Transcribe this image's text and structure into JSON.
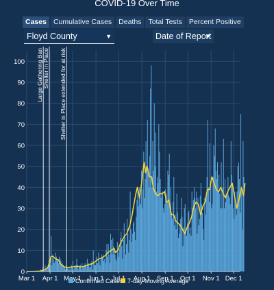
{
  "title": "COVID-19 Over Time",
  "tabs": [
    {
      "label": "Cases",
      "active": true
    },
    {
      "label": "Cumulative Cases",
      "active": false
    },
    {
      "label": "Deaths",
      "active": false
    },
    {
      "label": "Total Tests",
      "active": false
    },
    {
      "label": "Percent Positive",
      "active": false
    }
  ],
  "county_select": {
    "value": "Floyd County"
  },
  "date_select": {
    "value": "Date of Report"
  },
  "colors": {
    "background": "#153152",
    "bars": "#5ba8dd",
    "moving_average": "#f2d33b",
    "grid": "#2a4c70",
    "annotation_line": "#dfe6ee"
  },
  "chart_data": {
    "type": "bar",
    "x_axis": {
      "start": "Mar 1",
      "end": "Dec 9",
      "tick_labels": [
        "Mar 1",
        "Apr 1",
        "May 1",
        "Jun 1",
        "Jul 1",
        "Aug 1",
        "Sep 1",
        "Oct 1",
        "Nov 1",
        "Dec 1"
      ],
      "tick_days": [
        0,
        31,
        61,
        92,
        122,
        153,
        184,
        214,
        245,
        275
      ]
    },
    "y_axis": {
      "ylim": [
        0,
        105
      ],
      "ticks": [
        0,
        10,
        20,
        30,
        40,
        50,
        60,
        70,
        80,
        90,
        100
      ]
    },
    "grid": true,
    "legend": {
      "position": "bottom",
      "entries": [
        "Confirmed Cases",
        "7-day Moving Average"
      ]
    },
    "series": [
      {
        "name": "Confirmed Cases",
        "type": "bar"
      },
      {
        "name": "7-day Moving Average",
        "type": "line"
      }
    ],
    "daily_start": "Mar 1",
    "daily_cases": [
      0,
      0,
      0,
      0,
      0,
      0,
      0,
      0,
      0,
      0,
      0,
      0,
      0,
      0,
      0,
      0,
      0,
      0,
      1,
      0,
      0,
      2,
      1,
      0,
      3,
      1,
      1,
      2,
      3,
      5,
      4,
      6,
      17,
      3,
      8,
      6,
      4,
      5,
      9,
      7,
      6,
      5,
      4,
      7,
      6,
      5,
      3,
      4,
      3,
      2,
      2,
      1,
      3,
      2,
      2,
      1,
      1,
      2,
      1,
      3,
      2,
      5,
      1,
      2,
      2,
      3,
      6,
      3,
      1,
      3,
      2,
      3,
      1,
      4,
      2,
      2,
      3,
      4,
      3,
      2,
      6,
      3,
      4,
      2,
      2,
      4,
      5,
      1,
      10,
      3,
      4,
      3,
      7,
      4,
      4,
      9,
      5,
      3,
      6,
      8,
      7,
      8,
      5,
      6,
      4,
      10,
      13,
      7,
      13,
      8,
      4,
      18,
      15,
      8,
      16,
      12,
      10,
      8,
      6,
      5,
      14,
      9,
      7,
      11,
      16,
      19,
      12,
      6,
      15,
      23,
      17,
      8,
      13,
      25,
      18,
      9,
      15,
      38,
      20,
      14,
      18,
      23,
      24,
      19,
      15,
      26,
      34,
      40,
      31,
      40,
      35,
      32,
      48,
      30,
      39,
      57,
      35,
      44,
      62,
      50,
      72,
      49,
      40,
      55,
      87,
      98,
      40,
      62,
      48,
      80,
      50,
      66,
      38,
      45,
      42,
      70,
      57,
      44,
      35,
      37,
      38,
      30,
      28,
      32,
      39,
      37,
      33,
      48,
      46,
      56,
      30,
      40,
      28,
      25,
      33,
      45,
      22,
      27,
      20,
      37,
      28,
      16,
      23,
      18,
      25,
      35,
      26,
      12,
      21,
      30,
      32,
      20,
      17,
      23,
      28,
      29,
      18,
      21,
      17,
      38,
      30,
      34,
      40,
      35,
      30,
      38,
      18,
      35,
      22,
      25,
      36,
      42,
      32,
      28,
      20,
      15,
      35,
      27,
      36,
      45,
      72,
      40,
      33,
      61,
      42,
      30,
      32,
      45,
      60,
      55,
      68,
      48,
      44,
      52,
      38,
      46,
      37,
      30,
      52,
      30,
      40,
      63,
      30,
      44,
      33,
      36,
      38,
      45,
      36,
      35,
      32,
      62,
      46,
      40,
      30,
      25,
      38,
      32,
      27,
      38,
      50,
      52,
      44,
      28,
      75,
      40,
      20,
      62,
      45
    ],
    "moving_average": [
      [
        0,
        0
      ],
      [
        18,
        0.2
      ],
      [
        24,
        0.8
      ],
      [
        28,
        2
      ],
      [
        31,
        5
      ],
      [
        32,
        7
      ],
      [
        35,
        7.2
      ],
      [
        38,
        6
      ],
      [
        42,
        5.5
      ],
      [
        45,
        3.5
      ],
      [
        50,
        2.2
      ],
      [
        55,
        1.8
      ],
      [
        60,
        2.2
      ],
      [
        66,
        2.5
      ],
      [
        72,
        2.2
      ],
      [
        78,
        2.6
      ],
      [
        82,
        3.2
      ],
      [
        88,
        3.8
      ],
      [
        92,
        5
      ],
      [
        96,
        6
      ],
      [
        100,
        6.5
      ],
      [
        104,
        7.5
      ],
      [
        108,
        9
      ],
      [
        112,
        10
      ],
      [
        116,
        11
      ],
      [
        118,
        9
      ],
      [
        121,
        10
      ],
      [
        124,
        13
      ],
      [
        127,
        15
      ],
      [
        130,
        17
      ],
      [
        133,
        18
      ],
      [
        137,
        22
      ],
      [
        140,
        27
      ],
      [
        143,
        33
      ],
      [
        145,
        37
      ],
      [
        147,
        40
      ],
      [
        150,
        35
      ],
      [
        153,
        43
      ],
      [
        156,
        52
      ],
      [
        158,
        47
      ],
      [
        160,
        50
      ],
      [
        163,
        45
      ],
      [
        166,
        45
      ],
      [
        168,
        40
      ],
      [
        171,
        37
      ],
      [
        174,
        36
      ],
      [
        177,
        37
      ],
      [
        180,
        37
      ],
      [
        183,
        38
      ],
      [
        186,
        33
      ],
      [
        189,
        34
      ],
      [
        192,
        27
      ],
      [
        195,
        27
      ],
      [
        198,
        24
      ],
      [
        201,
        23
      ],
      [
        204,
        22
      ],
      [
        207,
        20
      ],
      [
        210,
        18
      ],
      [
        213,
        21
      ],
      [
        216,
        23
      ],
      [
        219,
        26
      ],
      [
        222,
        31
      ],
      [
        225,
        33
      ],
      [
        228,
        32
      ],
      [
        231,
        27
      ],
      [
        234,
        31
      ],
      [
        237,
        33
      ],
      [
        240,
        39
      ],
      [
        243,
        39
      ],
      [
        246,
        45
      ],
      [
        249,
        42
      ],
      [
        252,
        39
      ],
      [
        255,
        38
      ],
      [
        258,
        40
      ],
      [
        261,
        37
      ],
      [
        264,
        35
      ],
      [
        267,
        38
      ],
      [
        270,
        40
      ],
      [
        273,
        42
      ],
      [
        276,
        36
      ],
      [
        279,
        30
      ],
      [
        282,
        34
      ],
      [
        285,
        40
      ],
      [
        288,
        36
      ],
      [
        289,
        39
      ],
      [
        290,
        42
      ]
    ],
    "annotations": [
      {
        "label": "Large Gathering Ban",
        "day": 22
      },
      {
        "label": "Shelter in Place",
        "day": 30
      },
      {
        "label": "Shelter in Place extended for at risk",
        "day": 53
      }
    ]
  }
}
